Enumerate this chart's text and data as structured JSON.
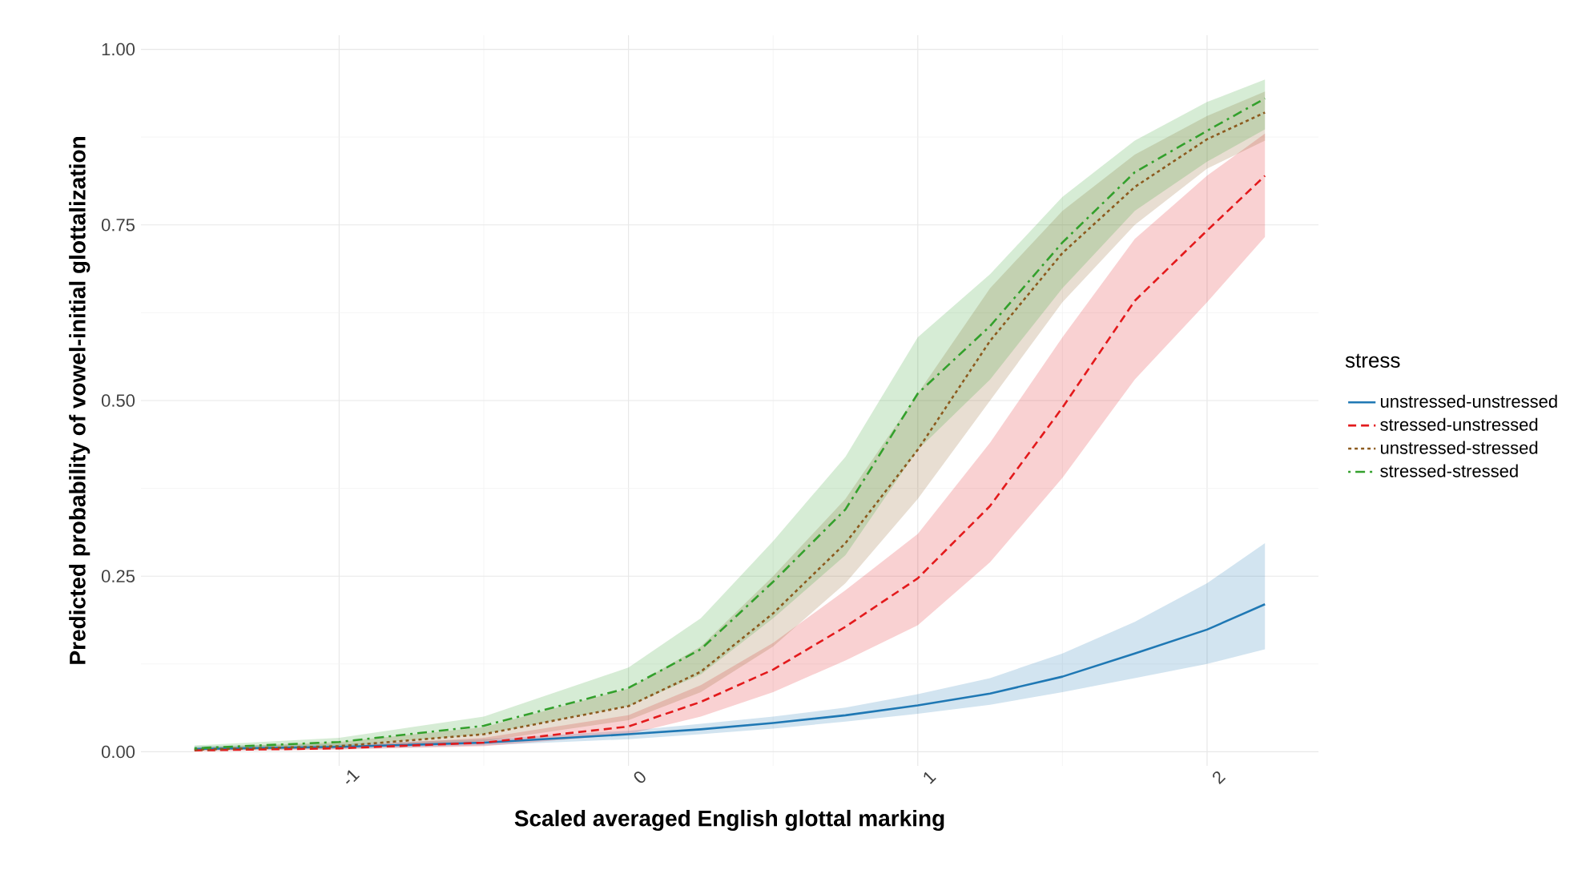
{
  "chart_data": {
    "type": "line",
    "xlabel": "Scaled averaged English glottal marking",
    "ylabel": "Predicted probability of vowel-initial glottalization",
    "legend_title": "stress",
    "legend": "right",
    "grid": true,
    "xlim": [
      -1.685,
      2.385
    ],
    "ylim": [
      -0.02,
      1.02
    ],
    "xticks": [
      -1,
      0,
      1,
      2
    ],
    "yticks": [
      {
        "value": 0,
        "label": "0.00"
      },
      {
        "value": 0.25,
        "label": "0.25"
      },
      {
        "value": 0.5,
        "label": "0.50"
      },
      {
        "value": 0.75,
        "label": "0.75"
      },
      {
        "value": 1,
        "label": "1.00"
      }
    ],
    "x": [
      -1.5,
      -1,
      -0.5,
      0,
      0.25,
      0.5,
      0.75,
      1,
      1.25,
      1.5,
      1.75,
      2,
      2.2
    ],
    "series": [
      {
        "name": "unstressed-unstressed",
        "color": "#1f78b4",
        "line_style": "solid",
        "values": [
          0.004,
          0.007,
          0.013,
          0.025,
          0.032,
          0.041,
          0.052,
          0.066,
          0.083,
          0.107,
          0.14,
          0.174,
          0.21
        ],
        "lower": [
          0.002,
          0.004,
          0.009,
          0.018,
          0.025,
          0.033,
          0.043,
          0.054,
          0.067,
          0.085,
          0.105,
          0.125,
          0.146
        ],
        "upper": [
          0.008,
          0.011,
          0.018,
          0.03,
          0.04,
          0.05,
          0.063,
          0.082,
          0.105,
          0.14,
          0.185,
          0.24,
          0.297
        ]
      },
      {
        "name": "stressed-unstressed",
        "color": "#e31a1c",
        "line_style": "dashed",
        "values": [
          0.002,
          0.005,
          0.013,
          0.036,
          0.071,
          0.117,
          0.178,
          0.247,
          0.35,
          0.49,
          0.642,
          0.742,
          0.82
        ],
        "lower": [
          0.001,
          0.003,
          0.008,
          0.025,
          0.05,
          0.085,
          0.13,
          0.18,
          0.27,
          0.39,
          0.53,
          0.64,
          0.733
        ],
        "upper": [
          0.004,
          0.008,
          0.02,
          0.052,
          0.095,
          0.155,
          0.23,
          0.31,
          0.44,
          0.59,
          0.73,
          0.82,
          0.88
        ]
      },
      {
        "name": "unstressed-stressed",
        "color": "#8c5a1e",
        "line_style": "dotted",
        "values": [
          0.003,
          0.008,
          0.025,
          0.065,
          0.114,
          0.197,
          0.297,
          0.43,
          0.585,
          0.71,
          0.804,
          0.872,
          0.91
        ],
        "lower": [
          0.002,
          0.005,
          0.015,
          0.045,
          0.085,
          0.15,
          0.24,
          0.36,
          0.5,
          0.64,
          0.75,
          0.83,
          0.87
        ],
        "upper": [
          0.006,
          0.014,
          0.035,
          0.09,
          0.15,
          0.25,
          0.36,
          0.51,
          0.66,
          0.77,
          0.85,
          0.905,
          0.94
        ]
      },
      {
        "name": "stressed-stressed",
        "color": "#33a02c",
        "line_style": "dashdot",
        "values": [
          0.005,
          0.014,
          0.037,
          0.091,
          0.146,
          0.242,
          0.345,
          0.51,
          0.606,
          0.725,
          0.825,
          0.884,
          0.93
        ],
        "lower": [
          0.003,
          0.008,
          0.025,
          0.065,
          0.11,
          0.19,
          0.28,
          0.43,
          0.53,
          0.66,
          0.77,
          0.84,
          0.886
        ],
        "upper": [
          0.009,
          0.02,
          0.05,
          0.12,
          0.19,
          0.3,
          0.42,
          0.59,
          0.68,
          0.79,
          0.87,
          0.925,
          0.957
        ]
      }
    ]
  }
}
